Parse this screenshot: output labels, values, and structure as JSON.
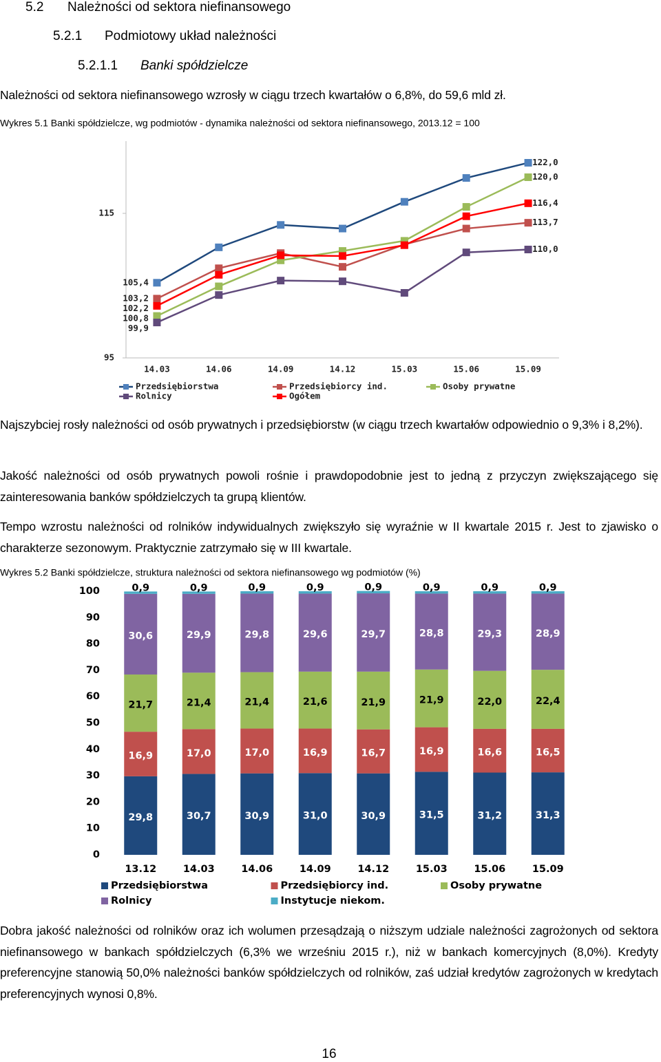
{
  "headings": [
    {
      "number": "5.2",
      "text": "Należności od sektora niefinansowego"
    },
    {
      "number": "5.2.1",
      "text": "Podmiotowy układ należności"
    },
    {
      "number": "5.2.1.1",
      "text": "Banki spółdzielcze"
    }
  ],
  "paragraphs": [
    "Należności od sektora niefinansowego wzrosły w ciągu trzech kwartałów o 6,8%, do 59,6 mld zł.",
    "Najszybciej rosły należności od osób prywatnych i przedsiębiorstw (w ciągu trzech kwartałów odpowiednio o 9,3% i 8,2%).",
    "Jakość należności od osób prywatnych powoli rośnie i prawdopodobnie jest to jedną z przyczyn zwiększającego się zainteresowania banków spółdzielczych ta grupą klientów.",
    "Tempo wzrostu należności od rolników indywidualnych zwiększyło się wyraźnie w II kwartale 2015 r. Jest to zjawisko o charakterze sezonowym. Praktycznie zatrzymało się w III kwartale.",
    "Dobra jakość należności od rolników oraz ich wolumen przesądzają o niższym udziale należności zagrożonych od sektora niefinansowego w bankach spółdzielczych (6,3% we wrześniu 2015 r.), niż w bankach komercyjnych (8,0%). Kredyty preferencyjne stanowią 50,0% należności banków spółdzielczych od rolników, zaś udział kredytów zagrożonych w kredytach preferencyjnych wynosi 0,8%."
  ],
  "page_number": "16",
  "chart_data": [
    {
      "type": "line",
      "title": "Wykres 5.1 Banki spółdzielcze, wg podmiotów - dynamika należności od sektora niefinansowego, 2013.12 = 100",
      "categories": [
        "14.03",
        "14.06",
        "14.09",
        "14.12",
        "15.03",
        "15.06",
        "15.09"
      ],
      "ylim": [
        95,
        125
      ],
      "yticks": [
        95,
        115
      ],
      "series": [
        {
          "name": "Przedsiębiorstwa",
          "color": "#1f497d",
          "marker_color": "#4f81bd",
          "values": [
            105.4,
            110.3,
            113.4,
            112.9,
            116.6,
            119.9,
            122.0
          ],
          "value_labels": [
            "105,4",
            null,
            null,
            null,
            null,
            null,
            "122,0"
          ]
        },
        {
          "name": "Przedsiębiorcy ind.",
          "color": "#c0504d",
          "marker_color": "#c0504d",
          "values": [
            103.2,
            107.4,
            109.5,
            107.6,
            110.7,
            112.9,
            113.7
          ],
          "value_labels": [
            "103,2",
            null,
            null,
            null,
            null,
            null,
            "113,7"
          ]
        },
        {
          "name": "Osoby prywatne",
          "color": "#9bbb59",
          "marker_color": "#9bbb59",
          "values": [
            100.8,
            104.9,
            108.5,
            109.8,
            111.2,
            115.9,
            120.0
          ],
          "value_labels": [
            "100,8",
            null,
            null,
            null,
            null,
            null,
            "120,0"
          ]
        },
        {
          "name": "Rolnicy",
          "color": "#604a7b",
          "marker_color": "#604a7b",
          "values": [
            99.9,
            103.7,
            105.7,
            105.6,
            104.0,
            109.6,
            110.0
          ],
          "value_labels": [
            "99,9",
            null,
            null,
            null,
            null,
            null,
            "110,0"
          ]
        },
        {
          "name": "Ogółem",
          "color": "#ff0000",
          "marker_color": "#ff0000",
          "values": [
            102.2,
            106.5,
            109.2,
            109.1,
            110.6,
            114.6,
            116.4
          ],
          "value_labels": [
            "102,2",
            null,
            null,
            null,
            null,
            null,
            "116,4"
          ]
        }
      ]
    },
    {
      "type": "stacked_bar",
      "title": "Wykres 5.2 Banki spółdzielcze, struktura należności od sektora niefinansowego wg podmiotów (%)",
      "categories": [
        "13.12",
        "14.03",
        "14.06",
        "14.09",
        "14.12",
        "15.03",
        "15.06",
        "15.09"
      ],
      "ylim": [
        0,
        100
      ],
      "yticks": [
        0,
        10,
        20,
        30,
        40,
        50,
        60,
        70,
        80,
        90,
        100
      ],
      "series": [
        {
          "name": "Przedsiębiorstwa",
          "color": "#1f497d",
          "label_color": "#ffffff",
          "values": [
            29.8,
            30.7,
            30.9,
            31.0,
            30.9,
            31.5,
            31.2,
            31.3
          ],
          "value_labels": [
            "29,8",
            "30,7",
            "30,9",
            "31,0",
            "30,9",
            "31,5",
            "31,2",
            "31,3"
          ]
        },
        {
          "name": "Przedsiębiorcy ind.",
          "color": "#c0504d",
          "label_color": "#ffffff",
          "values": [
            16.9,
            17.0,
            17.0,
            16.9,
            16.7,
            16.9,
            16.6,
            16.5
          ],
          "value_labels": [
            "16,9",
            "17,0",
            "17,0",
            "16,9",
            "16,7",
            "16,9",
            "16,6",
            "16,5"
          ]
        },
        {
          "name": "Osoby prywatne",
          "color": "#9bbb59",
          "label_color": "#000000",
          "values": [
            21.7,
            21.4,
            21.4,
            21.6,
            21.9,
            21.9,
            22.0,
            22.4
          ],
          "value_labels": [
            "21,7",
            "21,4",
            "21,4",
            "21,6",
            "21,9",
            "21,9",
            "22,0",
            "22,4"
          ]
        },
        {
          "name": "Rolnicy",
          "color": "#8064a2",
          "label_color": "#ffffff",
          "values": [
            30.6,
            29.9,
            29.8,
            29.6,
            29.7,
            28.8,
            29.3,
            28.9
          ],
          "value_labels": [
            "30,6",
            "29,9",
            "29,8",
            "29,6",
            "29,7",
            "28,8",
            "29,3",
            "28,9"
          ]
        },
        {
          "name": "Instytucje niekom.",
          "color": "#4bacc6",
          "label_color": "#000000",
          "values": [
            0.9,
            0.9,
            0.9,
            0.9,
            0.9,
            0.9,
            0.9,
            0.9
          ],
          "value_labels": [
            "0,9",
            "0,9",
            "0,9",
            "0,9",
            "0,9",
            "0,9",
            "0,9",
            "0,9"
          ]
        }
      ]
    }
  ]
}
